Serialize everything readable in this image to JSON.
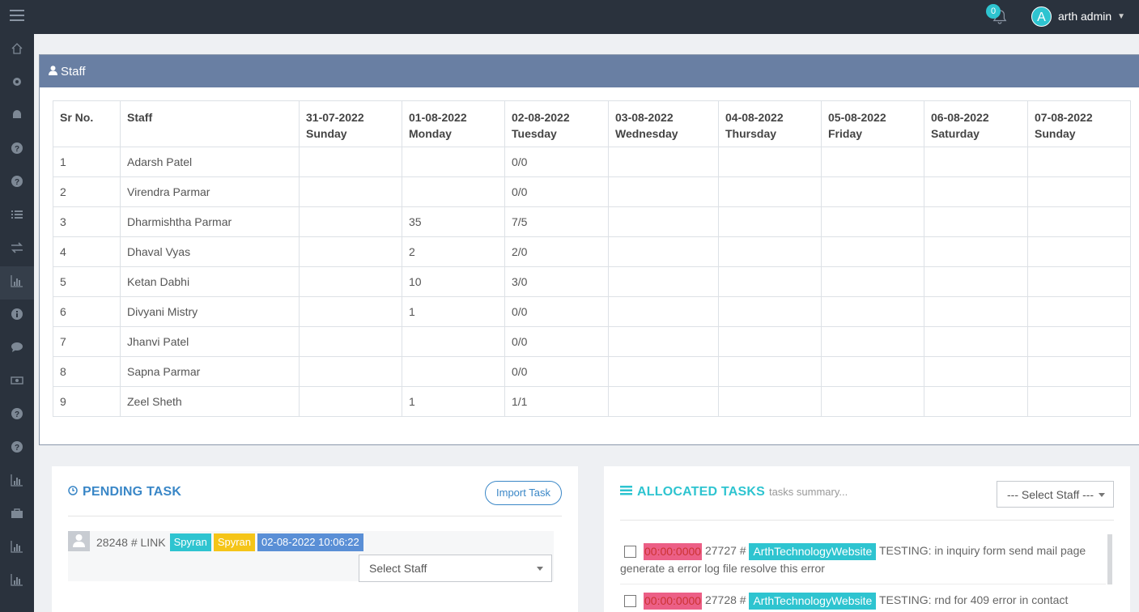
{
  "header": {
    "notification_count": "0",
    "user_initial": "A",
    "user_name": "arth admin"
  },
  "sidebar": {
    "icons": [
      "home-icon",
      "gear-icon",
      "android-icon",
      "question-icon",
      "question-icon",
      "list-icon",
      "exchange-icon",
      "bar-chart-icon",
      "info-icon",
      "comment-icon",
      "money-icon",
      "question-icon",
      "question-icon",
      "bar-chart-icon",
      "briefcase-icon",
      "bar-chart-icon",
      "bar-chart-icon"
    ]
  },
  "staff_panel": {
    "title": "Staff",
    "columns": [
      {
        "line1": "Sr No.",
        "line2": ""
      },
      {
        "line1": "Staff",
        "line2": ""
      },
      {
        "line1": "31-07-2022",
        "line2": "Sunday"
      },
      {
        "line1": "01-08-2022",
        "line2": "Monday"
      },
      {
        "line1": "02-08-2022",
        "line2": "Tuesday"
      },
      {
        "line1": "03-08-2022",
        "line2": "Wednesday"
      },
      {
        "line1": "04-08-2022",
        "line2": "Thursday"
      },
      {
        "line1": "05-08-2022",
        "line2": "Friday"
      },
      {
        "line1": "06-08-2022",
        "line2": "Saturday"
      },
      {
        "line1": "07-08-2022",
        "line2": "Sunday"
      }
    ],
    "rows": [
      [
        "1",
        "Adarsh Patel",
        "",
        "",
        "0/0",
        "",
        "",
        "",
        "",
        ""
      ],
      [
        "2",
        "Virendra Parmar",
        "",
        "",
        "0/0",
        "",
        "",
        "",
        "",
        ""
      ],
      [
        "3",
        "Dharmishtha Parmar",
        "",
        "35",
        "7/5",
        "",
        "",
        "",
        "",
        ""
      ],
      [
        "4",
        "Dhaval Vyas",
        "",
        "2",
        "2/0",
        "",
        "",
        "",
        "",
        ""
      ],
      [
        "5",
        "Ketan Dabhi",
        "",
        "10",
        "3/0",
        "",
        "",
        "",
        "",
        ""
      ],
      [
        "6",
        "Divyani Mistry",
        "",
        "1",
        "0/0",
        "",
        "",
        "",
        "",
        ""
      ],
      [
        "7",
        "Jhanvi Patel",
        "",
        "",
        "0/0",
        "",
        "",
        "",
        "",
        ""
      ],
      [
        "8",
        "Sapna Parmar",
        "",
        "",
        "0/0",
        "",
        "",
        "",
        "",
        ""
      ],
      [
        "9",
        "Zeel Sheth",
        "",
        "1",
        "1/1",
        "",
        "",
        "",
        "",
        ""
      ]
    ]
  },
  "pending": {
    "title": "PENDING TASK",
    "import_label": "Import Task",
    "task": {
      "text": "28248 # LINK",
      "tag1": "Spyran",
      "tag2": "Spyran",
      "datetime": "02-08-2022 10:06:22"
    },
    "select_staff": "Select Staff"
  },
  "allocated": {
    "title": "ALLOCATED TASKS",
    "subtitle": "tasks summary...",
    "select_staff": "--- Select Staff ---",
    "tasks": [
      {
        "time": "00:00:0000",
        "id": "27727 #",
        "project": "ArthTechnologyWebsite",
        "text": "TESTING: in inquiry form send mail page generate a error log file resolve this error"
      },
      {
        "time": "00:00:0000",
        "id": "27728 #",
        "project": "ArthTechnologyWebsite",
        "text": "TESTING: rnd for 409 error in contact"
      }
    ]
  },
  "colors": {
    "topbar": "#2a323d",
    "panel_header": "#697fa3",
    "accent_cyan": "#2ec4d0",
    "accent_blue": "#3a87c7",
    "time_pink": "#ec5f86"
  }
}
